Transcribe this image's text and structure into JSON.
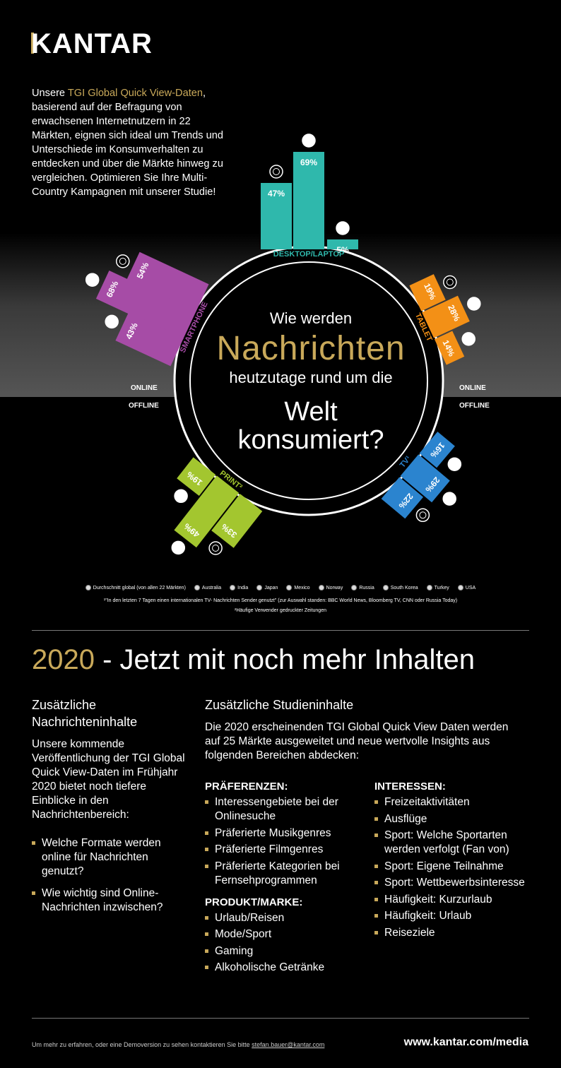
{
  "brand": "KANTAR",
  "intro": {
    "pre": "Unsere ",
    "highlight": "TGI Global Quick View-Daten",
    "post": ", basierend auf der Befragung von erwachsenen Internetnutzern in 22 Märkten, eignen sich ideal um Trends und Unterschiede im Konsumverhalten zu entdecken und über die Märkte hinweg zu vergleichen. Optimieren Sie Ihre Multi-Country Kampagnen mit unserer Studie!"
  },
  "question": {
    "line1": "Wie werden",
    "line2": "Nachrichten",
    "line3": "heutzutage rund um die",
    "line4a": "Welt",
    "line4b": "konsumiert?"
  },
  "online_label": "ONLINE",
  "offline_label": "OFFLINE",
  "colors": {
    "desktop": "#2fb8ac",
    "tablet": "#f39016",
    "smartphone": "#a64ca6",
    "print": "#a3c62f",
    "tv": "#2b84cf",
    "gold": "#c9a95a"
  },
  "chart_data": {
    "type": "bar",
    "categories": [
      "DESKTOP/LAPTOP",
      "TABLET",
      "TV¹",
      "PRINT²",
      "SMARTPHONE"
    ],
    "series": [
      {
        "category": "DESKTOP/LAPTOP",
        "values": [
          {
            "market": "Durchschnitt global",
            "value": 47,
            "label": "47%"
          },
          {
            "market": "Russia",
            "value": 69,
            "label": "69%"
          },
          {
            "market": "India",
            "value": 5,
            "label": "5%"
          }
        ]
      },
      {
        "category": "TABLET",
        "values": [
          {
            "market": "Durchschnitt global",
            "value": 19,
            "label": "19%"
          },
          {
            "market": "Norway",
            "value": 28,
            "label": "28%"
          },
          {
            "market": "South Korea",
            "value": 14,
            "label": "14%"
          }
        ]
      },
      {
        "category": "TV¹",
        "values": [
          {
            "market": "Australia",
            "value": 16,
            "label": "16%"
          },
          {
            "market": "Mexico",
            "value": 29,
            "label": "29%"
          },
          {
            "market": "Durchschnitt global",
            "value": 22,
            "label": "22%"
          }
        ]
      },
      {
        "category": "PRINT²",
        "values": [
          {
            "market": "Japan",
            "value": 19,
            "label": "19%"
          },
          {
            "market": "Turkey",
            "value": 49,
            "label": "49%"
          },
          {
            "market": "Durchschnitt global",
            "value": 33,
            "label": "33%"
          }
        ]
      },
      {
        "category": "SMARTPHONE",
        "values": [
          {
            "market": "Durchschnitt global",
            "value": 54,
            "label": "54%"
          },
          {
            "market": "South Korea",
            "value": 68,
            "label": "68%"
          },
          {
            "market": "USA",
            "value": 43,
            "label": "43%"
          }
        ]
      }
    ]
  },
  "legend": [
    "Durchschnitt global (von allen 22 Märkten)",
    "Australia",
    "India",
    "Japan",
    "Mexico",
    "Norway",
    "Russia",
    "South Korea",
    "Turkey",
    "USA"
  ],
  "footnote1": "¹\"In den letzten 7 Tagen einen internationalen TV- Nachrichten Sender genutzt\" (zur Auswahl standen: BBC World News, Bloomberg TV, CNN oder Russia Today)",
  "footnote2": "²Häufige Verwender gedruckter Zeitungen",
  "heading": {
    "year": "2020",
    "rest": " - Jetzt mit noch mehr Inhalten"
  },
  "left": {
    "title": "Zusätzliche Nachrichteninhalte",
    "text": "Unsere kommende Veröffentlichung der TGI Global Quick View-Daten im Frühjahr 2020 bietet noch tiefere Einblicke in den Nachrichtenbereich:",
    "bullets": [
      "Welche Formate werden online für Nachrichten genutzt?",
      "Wie wichtig sind Online-Nachrichten inzwischen?"
    ]
  },
  "middle": {
    "title": "Zusätzliche Studieninhalte",
    "text": "Die 2020 erscheinenden TGI Global Quick View Daten werden auf 25 Märkte ausgeweitet und neue wertvolle Insights aus folgenden Bereichen abdecken:"
  },
  "praef": {
    "title": "PRÄFERENZEN:",
    "items": [
      "Interessengebiete bei der Onlinesuche",
      "Präferierte Musikgenres",
      "Präferierte Filmgenres",
      "Präferierte Kategorien bei Fernsehprogrammen"
    ]
  },
  "produkt": {
    "title": "PRODUKT/MARKE:",
    "items": [
      "Urlaub/Reisen",
      "Mode/Sport",
      "Gaming",
      "Alkoholische Getränke"
    ]
  },
  "interessen": {
    "title": "INTERESSEN:",
    "items": [
      "Freizeitaktivitäten",
      "Ausflüge",
      "Sport: Welche Sportarten werden verfolgt (Fan von)",
      "Sport: Eigene Teilnahme",
      "Sport: Wettbewerbsinteresse",
      "Häufigkeit: Kurzurlaub",
      "Häufigkeit: Urlaub",
      "Reiseziele"
    ]
  },
  "footer": {
    "text": "Um mehr zu erfahren, oder eine Demoversion zu sehen kontaktieren Sie bitte ",
    "email": "stefan.bauer@kantar.com",
    "url": "www.kantar.com/media"
  }
}
